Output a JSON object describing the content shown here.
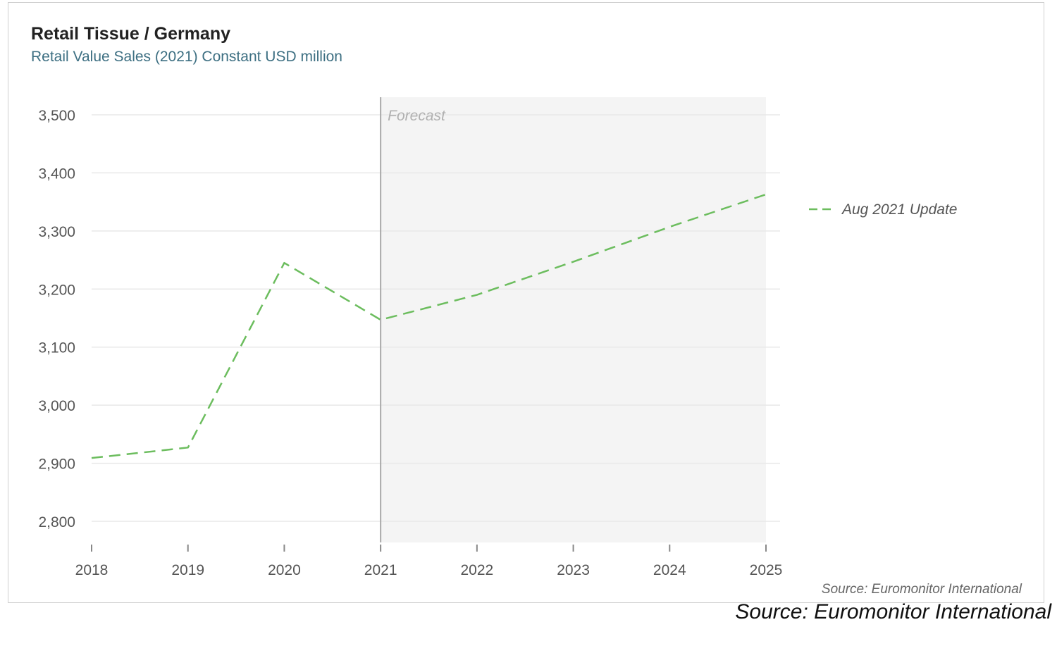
{
  "header": {
    "title_main": "Retail Tissue",
    "title_rest": " / Germany",
    "subtitle": "Retail Value Sales (2021) Constant USD million"
  },
  "colors": {
    "series": "#6cbd5e",
    "subtitle": "#3d6f82",
    "forecast_shade": "#f4f4f4",
    "forecast_line": "#a9a9a9",
    "forecast_label": "#b0b0b0",
    "grid": "#e8e8e8"
  },
  "chart_data": {
    "type": "line",
    "title": "Retail Tissue / Germany",
    "subtitle": "Retail Value Sales (2021) Constant USD million",
    "x": [
      "2018",
      "2019",
      "2020",
      "2021",
      "2022",
      "2023",
      "2024",
      "2025"
    ],
    "series": [
      {
        "name": "Aug 2021 Update",
        "values": [
          2909,
          2927,
          3245,
          3147,
          3190,
          3247,
          3307,
          3363
        ],
        "line_style": "dashed"
      }
    ],
    "yticks": [
      2800,
      2900,
      3000,
      3100,
      3200,
      3300,
      3400,
      3500
    ],
    "ytick_labels": [
      "2,800",
      "2,900",
      "3,000",
      "3,100",
      "3,200",
      "3,300",
      "3,400",
      "3,500"
    ],
    "ylim": [
      2770,
      3530
    ],
    "grid": true,
    "forecast": {
      "label": "Forecast",
      "start": "2021",
      "end": "2025"
    },
    "legend_position": "right",
    "source": "Source: Euromonitor International"
  },
  "footer": {
    "source_outer": "Source: Euromonitor International"
  }
}
